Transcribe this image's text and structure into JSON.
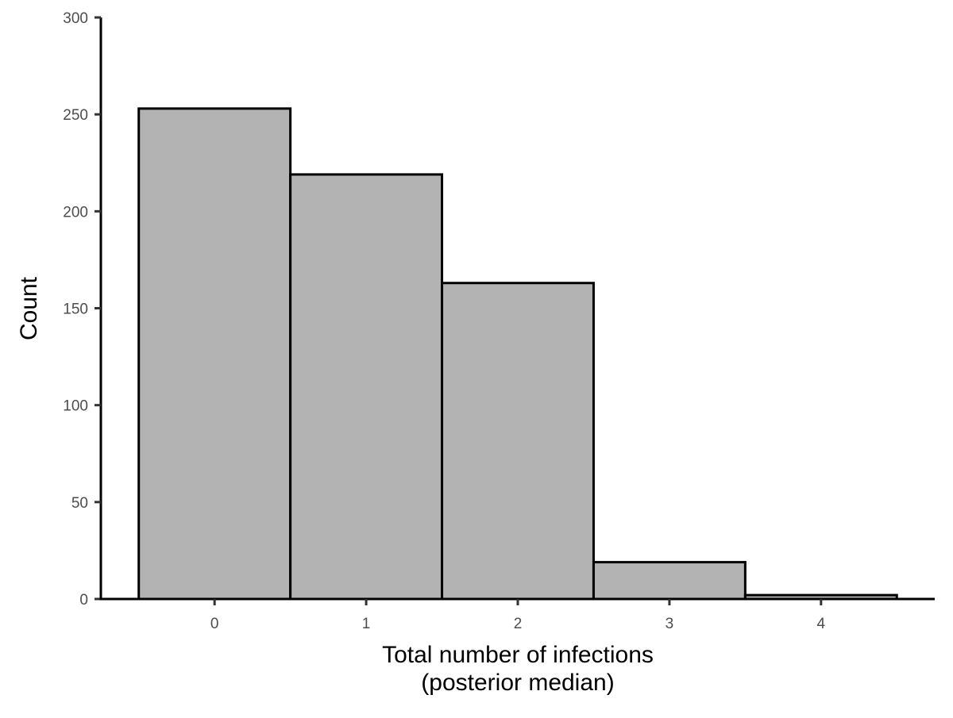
{
  "chart_data": {
    "type": "bar",
    "title": "",
    "categories": [
      "0",
      "1",
      "2",
      "3",
      "4"
    ],
    "values": [
      253,
      219,
      163,
      19,
      2
    ],
    "xlabel": [
      "Total number of infections",
      "(posterior median)"
    ],
    "ylabel": "Count",
    "x_ticks": [
      "0",
      "1",
      "2",
      "3",
      "4"
    ],
    "y_ticks": [
      0,
      50,
      100,
      150,
      200,
      250,
      300
    ],
    "xlim": [
      -0.75,
      4.75
    ],
    "ylim": [
      0,
      300
    ],
    "grid": false,
    "legend": "none",
    "colors": {
      "bar_fill": "#b3b3b3",
      "bar_outline": "#000000",
      "axis": "#000000",
      "tick_label": "#4d4d4d"
    }
  }
}
